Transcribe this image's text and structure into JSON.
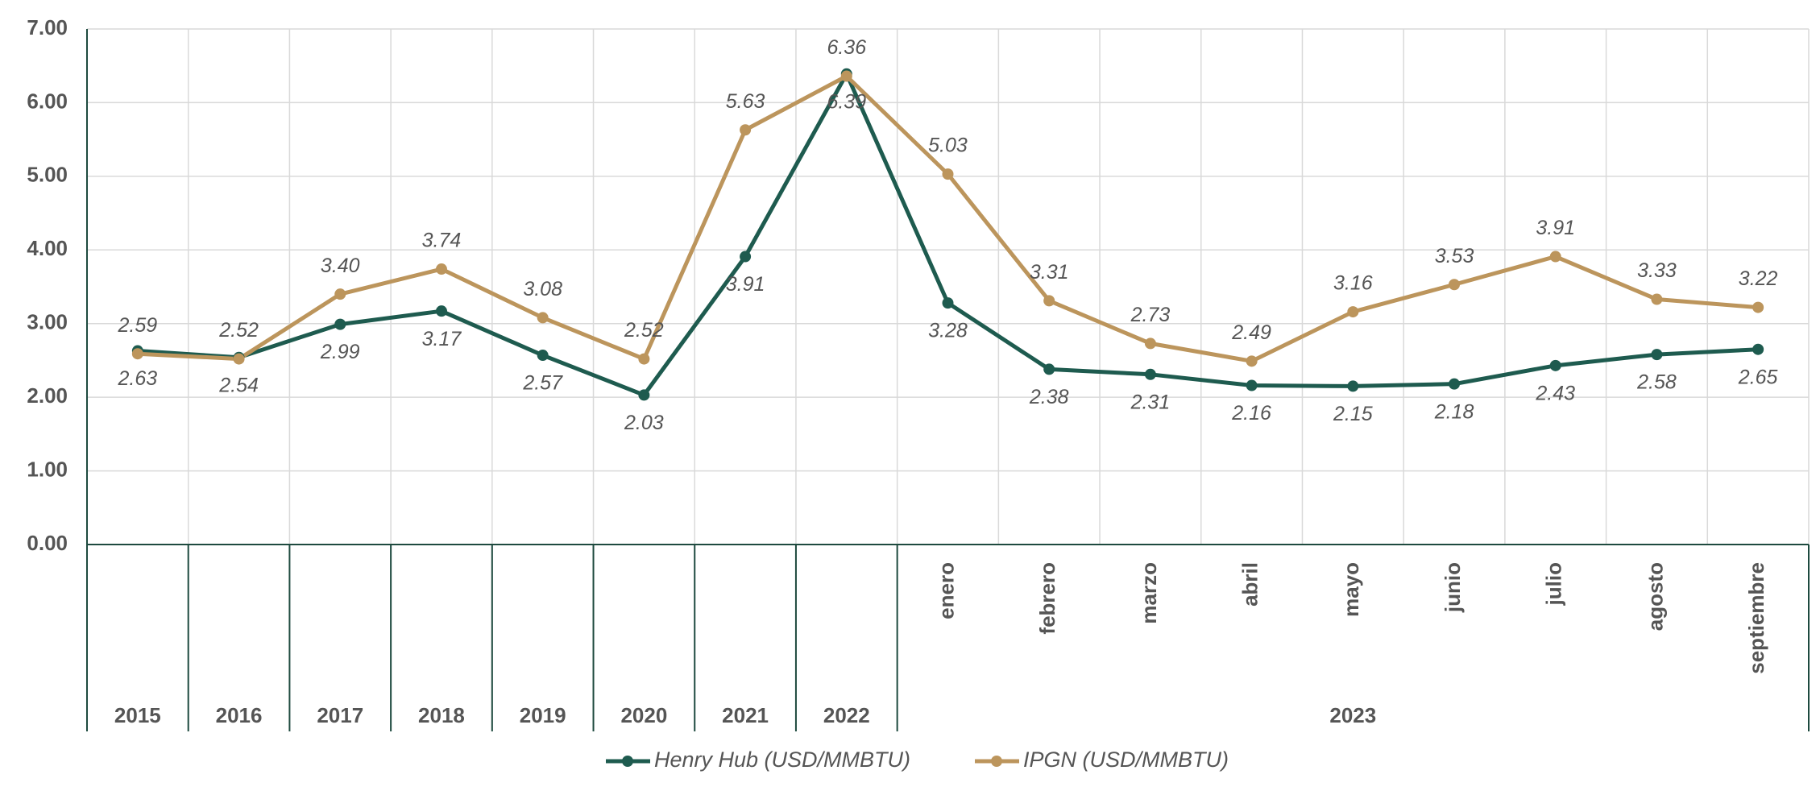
{
  "chart_data": {
    "type": "line",
    "categories": [
      "2015",
      "2016",
      "2017",
      "2018",
      "2019",
      "2020",
      "2021",
      "2022",
      "enero",
      "febrero",
      "marzo",
      "abril",
      "mayo",
      "junio",
      "julio",
      "agosto",
      "septiembre"
    ],
    "group_label": "2023",
    "series": [
      {
        "name": "Henry Hub (USD/MMBTU)",
        "color": "#1e5b4f",
        "values": [
          2.63,
          2.54,
          2.99,
          3.17,
          2.57,
          2.03,
          3.91,
          6.39,
          3.28,
          2.38,
          2.31,
          2.16,
          2.15,
          2.18,
          2.43,
          2.58,
          2.65
        ],
        "value_labels": [
          "2.63",
          "2.54",
          "2.99",
          "3.17",
          "2.57",
          "2.03",
          "3.91",
          "6.39",
          "3.28",
          "2.38",
          "2.31",
          "2.16",
          "2.15",
          "2.18",
          "2.43",
          "2.58",
          "2.65"
        ]
      },
      {
        "name": "IPGN (USD/MMBTU)",
        "color": "#bc955c",
        "values": [
          2.59,
          2.52,
          3.4,
          3.74,
          3.08,
          2.52,
          5.63,
          6.36,
          5.03,
          3.31,
          2.73,
          2.49,
          3.16,
          3.53,
          3.91,
          3.33,
          3.22
        ],
        "value_labels": [
          "2.59",
          "2.52",
          "3.40",
          "3.74",
          "3.08",
          "2.52",
          "5.63",
          "6.36",
          "5.03",
          "3.31",
          "2.73",
          "2.49",
          "3.16",
          "3.53",
          "3.91",
          "3.33",
          "3.22"
        ]
      }
    ],
    "ylim": [
      0,
      7
    ],
    "yticks": [
      {
        "value": 0,
        "label": "0.00"
      },
      {
        "value": 1,
        "label": "1.00"
      },
      {
        "value": 2,
        "label": "2.00"
      },
      {
        "value": 3,
        "label": "3.00"
      },
      {
        "value": 4,
        "label": "4.00"
      },
      {
        "value": 5,
        "label": "5.00"
      },
      {
        "value": 6,
        "label": "6.00"
      },
      {
        "value": 7,
        "label": "7.00"
      }
    ],
    "grid": true
  }
}
